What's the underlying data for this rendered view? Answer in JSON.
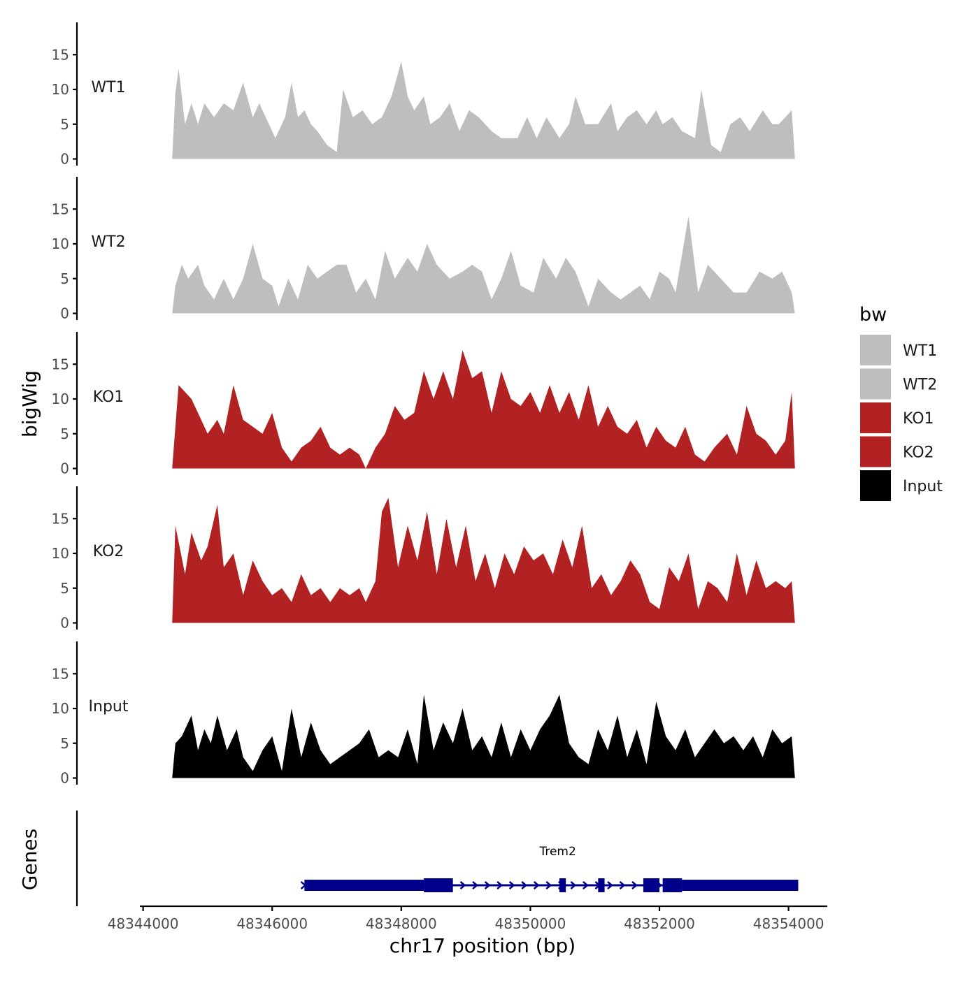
{
  "chart_data": {
    "type": "area",
    "title": "",
    "xlabel": "chr17 position (bp)",
    "ylabel": "bigWig",
    "gene_panel_label": "Genes",
    "xlim": [
      48343950,
      48354600
    ],
    "x_ticks": [
      48344000,
      48346000,
      48348000,
      48350000,
      48352000,
      48354000
    ],
    "x_tick_labels": [
      "48344000",
      "48346000",
      "48348000",
      "48350000",
      "48352000",
      "48354000"
    ],
    "ylim": [
      0,
      20
    ],
    "y_ticks": [
      0,
      5,
      10,
      15
    ],
    "y_tick_labels": [
      "0",
      "5",
      "10",
      "15"
    ],
    "legend": {
      "title": "bw",
      "position": "right",
      "entries": [
        {
          "label": "WT1",
          "color": "#bebebe"
        },
        {
          "label": "WT2",
          "color": "#bebebe"
        },
        {
          "label": "KO1",
          "color": "#b22222"
        },
        {
          "label": "KO2",
          "color": "#b22222"
        },
        {
          "label": "Input",
          "color": "#000000"
        }
      ]
    },
    "series": [
      {
        "name": "WT1",
        "color": "#bebebe",
        "x": [
          48344450,
          48344500,
          48344550,
          48344650,
          48344750,
          48344850,
          48344950,
          48345100,
          48345250,
          48345400,
          48345550,
          48345700,
          48345800,
          48345950,
          48346050,
          48346200,
          48346300,
          48346400,
          48346500,
          48346600,
          48346700,
          48346850,
          48347000,
          48347100,
          48347250,
          48347400,
          48347550,
          48347700,
          48347850,
          48348000,
          48348100,
          48348200,
          48348350,
          48348450,
          48348600,
          48348750,
          48348900,
          48349050,
          48349200,
          48349400,
          48349550,
          48349650,
          48349800,
          48349950,
          48350100,
          48350250,
          48350450,
          48350600,
          48350700,
          48350850,
          48351050,
          48351250,
          48351350,
          48351500,
          48351650,
          48351800,
          48351950,
          48352050,
          48352200,
          48352350,
          48352550,
          48352650,
          48352800,
          48352950,
          48353100,
          48353250,
          48353400,
          48353600,
          48353750,
          48353850,
          48354050,
          48354100
        ],
        "values": [
          0,
          9.5,
          13,
          5,
          8,
          5,
          8,
          6,
          8,
          7,
          11,
          6,
          8,
          5,
          3,
          6,
          11,
          6,
          7,
          5,
          4,
          2,
          1,
          10,
          6,
          7,
          5,
          6,
          9,
          14,
          9,
          7,
          9,
          5,
          6,
          8,
          4,
          7,
          6,
          4,
          3,
          3,
          3,
          6,
          3,
          6,
          3,
          5,
          9,
          5,
          5,
          8,
          4,
          6,
          7,
          5,
          7,
          5,
          6,
          4,
          3,
          10,
          2,
          1,
          5,
          6,
          4,
          7,
          5,
          5,
          7,
          0
        ]
      },
      {
        "name": "WT2",
        "color": "#bebebe",
        "x": [
          48344450,
          48344500,
          48344600,
          48344700,
          48344850,
          48344950,
          48345100,
          48345250,
          48345400,
          48345550,
          48345700,
          48345850,
          48346000,
          48346100,
          48346250,
          48346400,
          48346550,
          48346700,
          48346850,
          48347000,
          48347150,
          48347300,
          48347450,
          48347600,
          48347750,
          48347900,
          48348100,
          48348250,
          48348400,
          48348550,
          48348750,
          48348950,
          48349100,
          48349250,
          48349400,
          48349550,
          48349700,
          48349850,
          48350050,
          48350200,
          48350400,
          48350550,
          48350700,
          48350900,
          48351050,
          48351250,
          48351400,
          48351550,
          48351700,
          48351850,
          48352000,
          48352150,
          48352250,
          48352450,
          48352600,
          48352750,
          48352950,
          48353150,
          48353350,
          48353550,
          48353750,
          48353900,
          48354050,
          48354100
        ],
        "values": [
          0,
          4,
          7,
          5,
          7,
          4,
          2,
          5,
          2,
          5,
          10,
          5,
          4,
          1,
          5,
          2,
          7,
          5,
          6,
          7,
          7,
          3,
          5,
          2,
          9,
          5,
          8,
          6,
          10,
          7,
          5,
          6,
          7,
          6,
          2,
          5,
          9,
          4,
          3,
          8,
          5,
          8,
          6,
          1,
          5,
          3,
          2,
          3,
          4,
          2,
          6,
          5,
          3,
          14,
          3,
          7,
          5,
          3,
          3,
          6,
          5,
          6,
          3,
          0
        ]
      },
      {
        "name": "KO1",
        "color": "#b22222",
        "x": [
          48344450,
          48344550,
          48344650,
          48344750,
          48344850,
          48345000,
          48345150,
          48345250,
          48345400,
          48345550,
          48345700,
          48345850,
          48346000,
          48346150,
          48346300,
          48346450,
          48346600,
          48346750,
          48346900,
          48347050,
          48347200,
          48347350,
          48347450,
          48347600,
          48347750,
          48347900,
          48348050,
          48348200,
          48348350,
          48348500,
          48348650,
          48348800,
          48348950,
          48349100,
          48349250,
          48349400,
          48349550,
          48349700,
          48349850,
          48350000,
          48350150,
          48350300,
          48350450,
          48350600,
          48350750,
          48350900,
          48351050,
          48351200,
          48351350,
          48351500,
          48351650,
          48351800,
          48351950,
          48352100,
          48352250,
          48352400,
          48352550,
          48352700,
          48352850,
          48353050,
          48353200,
          48353350,
          48353500,
          48353650,
          48353800,
          48353950,
          48354050,
          48354100
        ],
        "values": [
          0,
          12,
          11,
          10,
          8,
          5,
          7,
          5,
          12,
          7,
          6,
          5,
          8,
          3,
          1,
          3,
          4,
          6,
          3,
          2,
          3,
          2,
          0,
          3,
          5,
          9,
          7,
          8,
          14,
          10,
          14,
          10,
          17,
          13,
          14,
          8,
          14,
          10,
          9,
          11,
          8,
          12,
          8,
          11,
          7,
          12,
          6,
          9,
          6,
          5,
          7,
          3,
          6,
          4,
          3,
          6,
          2,
          1,
          3,
          5,
          2,
          9,
          5,
          4,
          2,
          4,
          11,
          0
        ]
      },
      {
        "name": "KO2",
        "color": "#b22222",
        "x": [
          48344450,
          48344500,
          48344650,
          48344750,
          48344900,
          48345000,
          48345150,
          48345250,
          48345400,
          48345550,
          48345700,
          48345850,
          48346000,
          48346150,
          48346300,
          48346450,
          48346600,
          48346750,
          48346900,
          48347050,
          48347200,
          48347350,
          48347450,
          48347600,
          48347700,
          48347800,
          48347950,
          48348100,
          48348250,
          48348400,
          48348550,
          48348700,
          48348850,
          48349000,
          48349150,
          48349300,
          48349450,
          48349600,
          48349750,
          48349900,
          48350050,
          48350200,
          48350350,
          48350500,
          48350650,
          48350800,
          48350950,
          48351100,
          48351250,
          48351400,
          48351550,
          48351700,
          48351850,
          48352000,
          48352150,
          48352300,
          48352450,
          48352600,
          48352750,
          48352900,
          48353050,
          48353200,
          48353350,
          48353500,
          48353650,
          48353800,
          48353950,
          48354050,
          48354100
        ],
        "values": [
          0,
          14,
          7,
          13,
          9,
          11,
          17,
          8,
          10,
          4,
          9,
          6,
          4,
          5,
          3,
          7,
          4,
          5,
          3,
          5,
          4,
          5,
          3,
          6,
          16,
          18,
          8,
          14,
          9,
          16,
          7,
          15,
          8,
          14,
          6,
          10,
          5,
          10,
          7,
          11,
          9,
          10,
          7,
          12,
          8,
          14,
          5,
          7,
          4,
          6,
          9,
          7,
          3,
          2,
          8,
          6,
          10,
          2,
          6,
          5,
          3,
          10,
          4,
          9,
          5,
          6,
          5,
          6,
          0
        ]
      },
      {
        "name": "Input",
        "color": "#000000",
        "x": [
          48344450,
          48344500,
          48344600,
          48344750,
          48344850,
          48344950,
          48345050,
          48345150,
          48345300,
          48345450,
          48345550,
          48345700,
          48345850,
          48346000,
          48346150,
          48346300,
          48346450,
          48346600,
          48346750,
          48346900,
          48347050,
          48347200,
          48347350,
          48347500,
          48347650,
          48347800,
          48347950,
          48348100,
          48348250,
          48348350,
          48348500,
          48348650,
          48348800,
          48348950,
          48349100,
          48349250,
          48349400,
          48349550,
          48349700,
          48349850,
          48350000,
          48350150,
          48350300,
          48350450,
          48350600,
          48350750,
          48350900,
          48351050,
          48351200,
          48351350,
          48351500,
          48351650,
          48351800,
          48351950,
          48352100,
          48352250,
          48352400,
          48352550,
          48352700,
          48352850,
          48353000,
          48353150,
          48353300,
          48353450,
          48353600,
          48353750,
          48353900,
          48354050,
          48354100
        ],
        "values": [
          0,
          5,
          6,
          9,
          4,
          7,
          5,
          9,
          4,
          7,
          3,
          1,
          4,
          6,
          1,
          10,
          3,
          8,
          4,
          2,
          3,
          4,
          5,
          7,
          3,
          4,
          3,
          7,
          2,
          12,
          4,
          8,
          5,
          10,
          4,
          6,
          3,
          8,
          3,
          7,
          4,
          7,
          9,
          12,
          5,
          3,
          2,
          7,
          4,
          9,
          3,
          7,
          2,
          11,
          6,
          4,
          7,
          3,
          5,
          7,
          5,
          6,
          4,
          6,
          3,
          7,
          5,
          6,
          0
        ]
      }
    ],
    "gene_track": {
      "gene": "Trem2",
      "strand": "+",
      "color": "#00008b",
      "start": 48346500,
      "end": 48354150,
      "exons": [
        {
          "start": 48346500,
          "end": 48348350,
          "height": "thick"
        },
        {
          "start": 48348350,
          "end": 48348800,
          "height": "thicker"
        },
        {
          "start": 48350450,
          "end": 48350550,
          "height": "thicker"
        },
        {
          "start": 48351050,
          "end": 48351150,
          "height": "thicker"
        },
        {
          "start": 48351750,
          "end": 48352000,
          "height": "thicker"
        },
        {
          "start": 48352050,
          "end": 48352350,
          "height": "thicker"
        },
        {
          "start": 48352350,
          "end": 48354150,
          "height": "thick"
        }
      ]
    }
  }
}
